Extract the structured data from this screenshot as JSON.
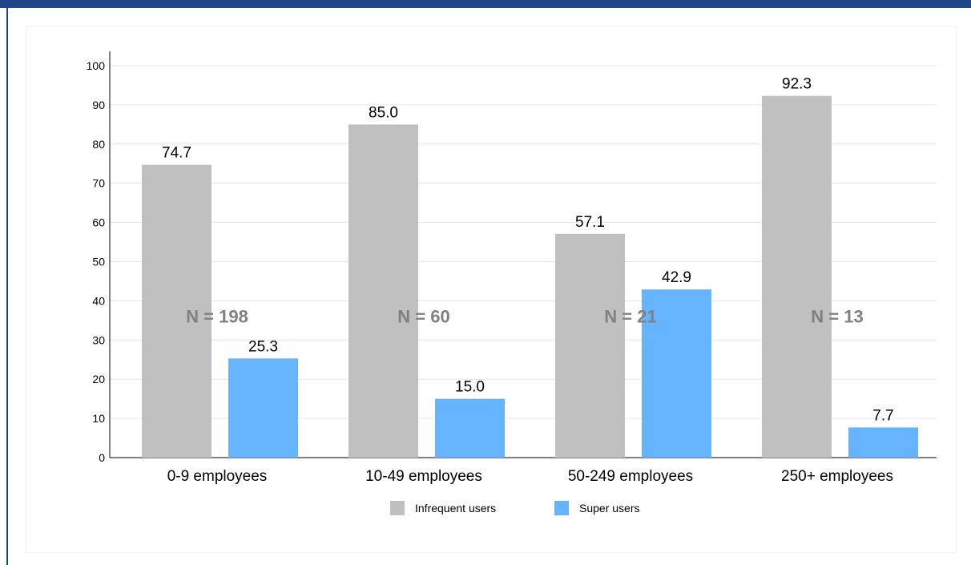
{
  "colors": {
    "frame": "#1f4788",
    "infrequent": "#c0c0c0",
    "super": "#66b3ff",
    "grid": "#e6e6e6",
    "n_label": "#808080"
  },
  "chart_data": {
    "type": "bar",
    "categories": [
      "0-9 employees",
      "10-49 employees",
      "50-249 employees",
      "250+ employees"
    ],
    "series": [
      {
        "name": "Infrequent users",
        "values": [
          74.7,
          85.0,
          57.1,
          92.3
        ],
        "labels": [
          "74.7",
          "85.0",
          "57.1",
          "92.3"
        ],
        "color": "#c0c0c0"
      },
      {
        "name": "Super users",
        "values": [
          25.3,
          15.0,
          42.9,
          7.7
        ],
        "labels": [
          "25.3",
          "15.0",
          "42.9",
          "7.7"
        ],
        "color": "#66b3ff"
      }
    ],
    "annotations": [
      "N = 198",
      "N = 60",
      "N = 21",
      "N = 13"
    ],
    "yticks": [
      "0",
      "10",
      "20",
      "30",
      "40",
      "50",
      "60",
      "70",
      "80",
      "90",
      "100"
    ],
    "ylim": [
      0,
      100
    ],
    "grid": true,
    "legend_position": "bottom"
  }
}
